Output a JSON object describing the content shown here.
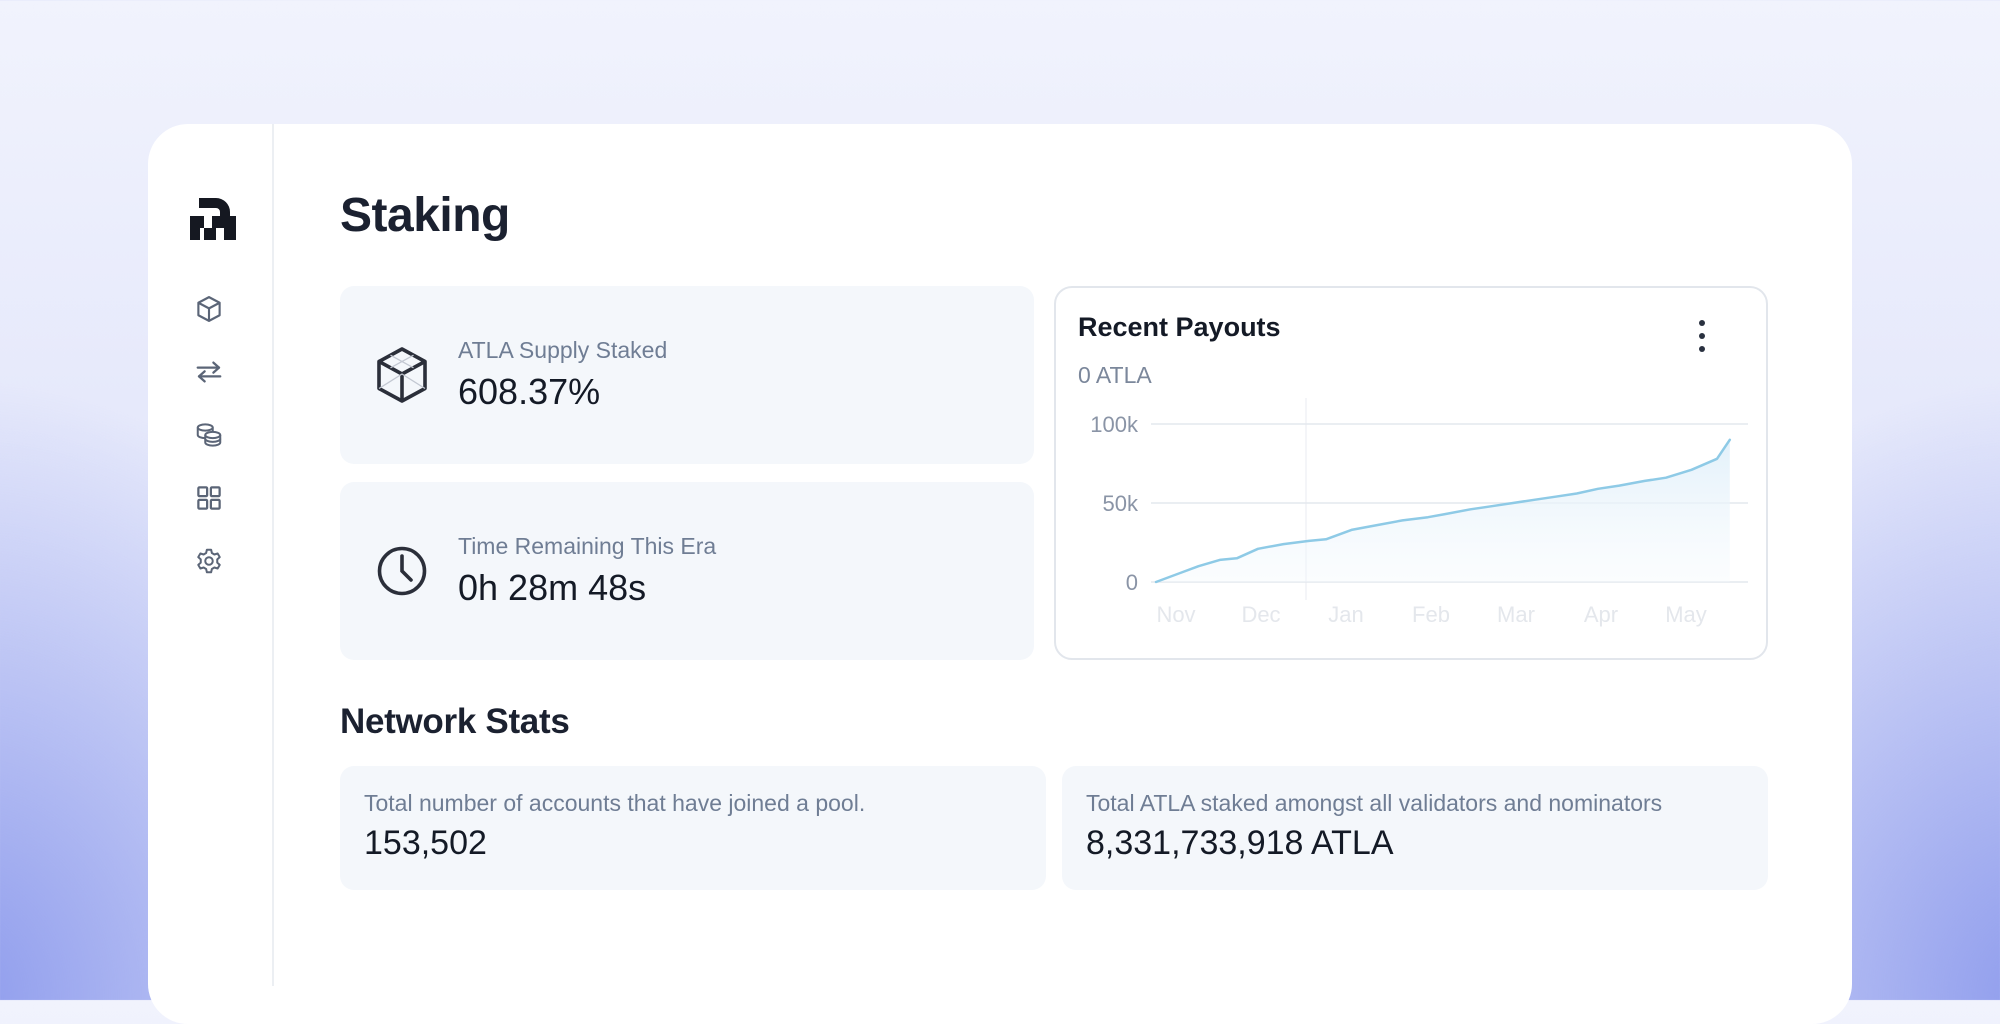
{
  "sidebar": {
    "logo_icon": "atla-logo",
    "items": [
      {
        "icon": "cube-icon",
        "label": "Staking"
      },
      {
        "icon": "transfer-icon",
        "label": "Transfers"
      },
      {
        "icon": "coins-icon",
        "label": "Pools"
      },
      {
        "icon": "grid-icon",
        "label": "Apps"
      },
      {
        "icon": "gear-icon",
        "label": "Settings"
      }
    ]
  },
  "page": {
    "title": "Staking"
  },
  "stats": {
    "supply": {
      "label": "ATLA Supply Staked",
      "value": "608.37%",
      "icon": "cube-icon"
    },
    "era": {
      "label": "Time Remaining This Era",
      "value": "0h 28m 48s",
      "icon": "clock-icon"
    }
  },
  "payouts": {
    "title": "Recent Payouts",
    "subtitle": "0 ATLA",
    "menu_icon": "kebab-menu-icon"
  },
  "chart_data": {
    "type": "area",
    "title": "Recent Payouts",
    "xlabel": "",
    "ylabel": "",
    "x_ticks": [
      "Nov",
      "Dec",
      "Jan",
      "Feb",
      "Mar",
      "Apr",
      "May"
    ],
    "y_ticks": [
      0,
      50000,
      100000
    ],
    "y_tick_labels": [
      "0",
      "50k",
      "100k"
    ],
    "ylim": [
      0,
      100000
    ],
    "grid": true,
    "series": [
      {
        "name": "Payouts",
        "color": "#8ecae6",
        "x": [
          0,
          0.3,
          0.5,
          0.75,
          0.95,
          1.2,
          1.5,
          1.8,
          2.0,
          2.3,
          2.6,
          2.9,
          3.2,
          3.4,
          3.7,
          3.95,
          4.2,
          4.45,
          4.7,
          4.95,
          5.2,
          5.45,
          5.75,
          6.0,
          6.3,
          6.6,
          6.75
        ],
        "values": [
          0,
          6000,
          10000,
          14000,
          15000,
          21000,
          24000,
          26000,
          27000,
          33000,
          36000,
          39000,
          41000,
          43000,
          46000,
          48000,
          50000,
          52000,
          54000,
          56000,
          59000,
          61000,
          64000,
          66000,
          71000,
          78000,
          90000
        ]
      }
    ]
  },
  "network": {
    "title": "Network Stats",
    "pool_accounts": {
      "label": "Total number of accounts that have joined a pool.",
      "value": "153,502"
    },
    "total_staked": {
      "label": "Total ATLA staked amongst all validators and nominators",
      "value": "8,331,733,918 ATLA"
    }
  }
}
